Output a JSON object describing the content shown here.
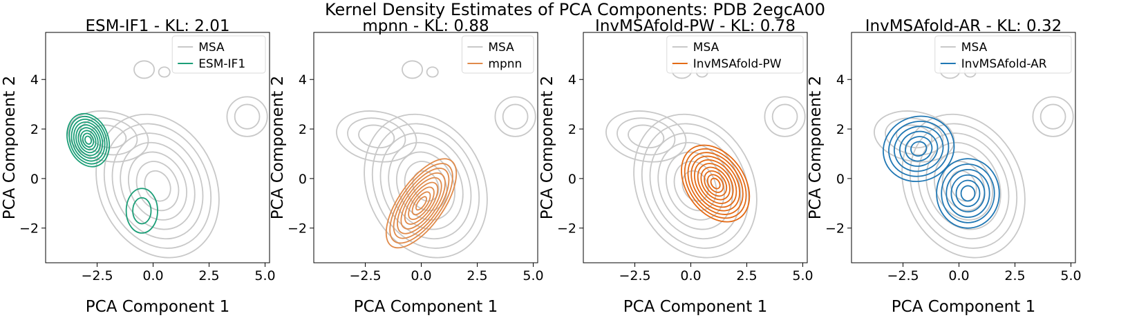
{
  "figure": {
    "suptitle": "Kernel Density Estimates of PCA Components: PDB 2egcA00"
  },
  "colors": {
    "msa": "#c8c8c8",
    "esm": "#1b9e77",
    "mpnn": "#e08a4a",
    "pw": "#e36a15",
    "ar": "#1f77b4"
  },
  "chart_data": [
    {
      "type": "kde_contour",
      "title": "ESM-IF1 - KL: 2.01",
      "xlabel": "PCA Component 1",
      "ylabel": "PCA Component 2",
      "xlim": [
        -4.8,
        5.2
      ],
      "ylim": [
        -3.4,
        5.9
      ],
      "xticks": [
        "−2.5",
        "0.0",
        "2.5",
        "5.0"
      ],
      "yticks": [
        "−2",
        "0",
        "2",
        "4"
      ],
      "xtick_values": [
        -2.5,
        0.0,
        2.5,
        5.0
      ],
      "ytick_values": [
        -2,
        0,
        2,
        4
      ],
      "legend": [
        "MSA",
        "ESM-IF1"
      ],
      "legend_loc": "upper right",
      "model_color_key": "esm",
      "model_modes": [
        {
          "cx": -2.9,
          "cy": 1.55,
          "rx": 0.9,
          "ry": 1.1,
          "rot": -20,
          "levels": 9
        },
        {
          "cx": -0.5,
          "cy": -1.3,
          "rx": 0.7,
          "ry": 0.9,
          "rot": 0,
          "levels": 2
        }
      ]
    },
    {
      "type": "kde_contour",
      "title": "mpnn - KL: 0.88",
      "xlabel": "PCA Component 1",
      "ylabel": "PCA Component 2",
      "xlim": [
        -4.8,
        5.2
      ],
      "ylim": [
        -3.4,
        5.9
      ],
      "xticks": [
        "−2.5",
        "0.0",
        "2.5",
        "5.0"
      ],
      "yticks": [
        "−2",
        "0",
        "2",
        "4"
      ],
      "xtick_values": [
        -2.5,
        0.0,
        2.5,
        5.0
      ],
      "ytick_values": [
        -2,
        0,
        2,
        4
      ],
      "legend": [
        "MSA",
        "mpnn"
      ],
      "legend_loc": "upper right",
      "model_color_key": "mpnn",
      "model_modes": [
        {
          "cx": 0.0,
          "cy": -1.0,
          "rx": 1.0,
          "ry": 2.1,
          "rot": 35,
          "levels": 9
        }
      ]
    },
    {
      "type": "kde_contour",
      "title": "InvMSAfold-PW - KL: 0.78",
      "xlabel": "PCA Component 1",
      "ylabel": "PCA Component 2",
      "xlim": [
        -4.8,
        5.2
      ],
      "ylim": [
        -3.4,
        5.9
      ],
      "xticks": [
        "−2.5",
        "0.0",
        "2.5",
        "5.0"
      ],
      "yticks": [
        "−2",
        "0",
        "2",
        "4"
      ],
      "xtick_values": [
        -2.5,
        0.0,
        2.5,
        5.0
      ],
      "ytick_values": [
        -2,
        0,
        2,
        4
      ],
      "legend": [
        "MSA",
        "InvMSAfold-PW"
      ],
      "legend_loc": "upper right",
      "model_color_key": "pw",
      "model_modes": [
        {
          "cx": 1.1,
          "cy": -0.2,
          "rx": 1.3,
          "ry": 1.7,
          "rot": -35,
          "levels": 10
        }
      ]
    },
    {
      "type": "kde_contour",
      "title": "InvMSAfold-AR - KL: 0.32",
      "xlabel": "PCA Component 1",
      "ylabel": "PCA Component 2",
      "xlim": [
        -4.8,
        5.2
      ],
      "ylim": [
        -3.4,
        5.9
      ],
      "xticks": [
        "−2.5",
        "0.0",
        "2.5",
        "5.0"
      ],
      "yticks": [
        "−2",
        "0",
        "2",
        "4"
      ],
      "xtick_values": [
        -2.5,
        0.0,
        2.5,
        5.0
      ],
      "ytick_values": [
        -2,
        0,
        2,
        4
      ],
      "legend": [
        "MSA",
        "InvMSAfold-AR"
      ],
      "legend_loc": "upper right",
      "model_color_key": "ar",
      "model_modes": [
        {
          "cx": -1.8,
          "cy": 1.2,
          "rx": 1.6,
          "ry": 1.3,
          "rot": -20,
          "levels": 6
        },
        {
          "cx": 0.4,
          "cy": -0.6,
          "rx": 1.4,
          "ry": 1.4,
          "rot": 0,
          "levels": 6
        }
      ]
    }
  ],
  "msa_modes": [
    {
      "cx": 0.2,
      "cy": -0.3,
      "rx": 2.6,
      "ry": 3.0,
      "rot": -25,
      "levels": 7
    },
    {
      "cx": -2.0,
      "cy": 1.7,
      "rx": 1.8,
      "ry": 1.0,
      "rot": 10,
      "levels": 3
    },
    {
      "cx": 4.2,
      "cy": 2.5,
      "rx": 0.9,
      "ry": 0.8,
      "rot": 0,
      "levels": 2
    },
    {
      "cx": -0.4,
      "cy": 4.4,
      "rx": 0.45,
      "ry": 0.35,
      "rot": 0,
      "levels": 1
    },
    {
      "cx": 0.5,
      "cy": 4.3,
      "rx": 0.25,
      "ry": 0.2,
      "rot": 0,
      "levels": 1
    }
  ]
}
